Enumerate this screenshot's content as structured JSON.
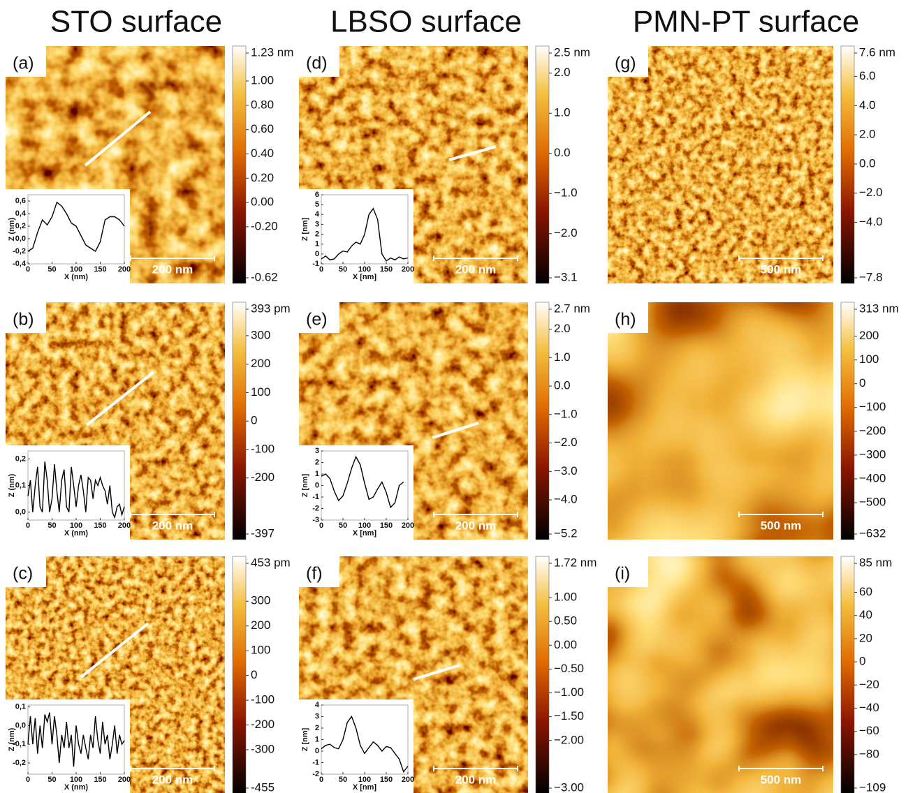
{
  "titles": [
    "STO surface",
    "LBSO surface",
    "PMN-PT surface"
  ],
  "panels": [
    {
      "label": "(a)",
      "scale_bar": "200 nm",
      "colorbar": {
        "ticks": [
          {
            "value": 1.23,
            "label": "1.23 nm"
          },
          {
            "value": 1.0,
            "label": "1.00"
          },
          {
            "value": 0.8,
            "label": "0.80"
          },
          {
            "value": 0.6,
            "label": "0.60"
          },
          {
            "value": 0.4,
            "label": "0.40"
          },
          {
            "value": 0.2,
            "label": "0.20"
          },
          {
            "value": 0,
            "label": "0.00"
          },
          {
            "value": -0.2,
            "label": "-0.20"
          },
          {
            "value": -0.62,
            "label": "-0.62"
          }
        ]
      },
      "inset": {
        "xlabel": "X (nm)",
        "ylabel": "Z (nm)",
        "xlim": [
          0,
          200
        ],
        "ylim": [
          -0.4,
          0.7
        ],
        "xticks": [
          0,
          50,
          100,
          150,
          200
        ],
        "yticks": [
          {
            "value": -0.4,
            "label": "-0,4"
          },
          {
            "value": -0.2,
            "label": "-0,2"
          },
          {
            "value": 0,
            "label": "0,0"
          },
          {
            "value": 0.2,
            "label": "0,2"
          },
          {
            "value": 0.4,
            "label": "0,4"
          },
          {
            "value": 0.6,
            "label": "0,6"
          }
        ],
        "x": [
          0,
          10,
          20,
          30,
          40,
          50,
          60,
          70,
          80,
          90,
          100,
          110,
          120,
          130,
          140,
          150,
          160,
          170,
          180,
          190,
          200
        ],
        "z": [
          -0.2,
          -0.15,
          0.1,
          0.3,
          0.22,
          0.35,
          0.58,
          0.52,
          0.4,
          0.25,
          0.2,
          0.05,
          -0.1,
          -0.15,
          -0.2,
          -0.05,
          0.3,
          0.35,
          0.35,
          0.3,
          0.2
        ]
      }
    },
    {
      "label": "(b)",
      "scale_bar": "200 nm",
      "colorbar": {
        "ticks": [
          {
            "value": 393,
            "label": "393 pm"
          },
          300,
          200,
          100,
          0,
          {
            "value": -100,
            "label": "-100"
          },
          {
            "value": -200,
            "label": "-200"
          },
          {
            "value": -397,
            "label": "-397"
          }
        ]
      },
      "inset": {
        "xlabel": "X (nm)",
        "ylabel": "Z (nm)",
        "xlim": [
          0,
          200
        ],
        "ylim": [
          -0.03,
          0.23
        ],
        "xticks": [
          0,
          50,
          100,
          150,
          200
        ],
        "yticks": [
          {
            "value": 0,
            "label": "0,0"
          },
          {
            "value": 0.1,
            "label": "0,1"
          },
          {
            "value": 0.2,
            "label": "0,2"
          }
        ],
        "x": [
          0,
          5,
          10,
          15,
          20,
          25,
          30,
          35,
          40,
          45,
          50,
          55,
          60,
          65,
          70,
          75,
          80,
          85,
          90,
          95,
          100,
          105,
          110,
          115,
          120,
          125,
          130,
          135,
          140,
          145,
          150,
          155,
          160,
          165,
          170,
          175,
          180,
          185,
          190,
          195,
          200
        ],
        "z": [
          0.06,
          0.12,
          0.0,
          0.1,
          0.17,
          0.02,
          0.0,
          0.19,
          0.12,
          0.0,
          0.05,
          0.18,
          0.08,
          0.0,
          0.12,
          0.16,
          0.02,
          0.0,
          0.17,
          0.1,
          0.02,
          0.1,
          0.14,
          0.08,
          0.0,
          0.13,
          0.12,
          0.05,
          0.12,
          0.1,
          0.13,
          0.1,
          0.08,
          0.03,
          0.1,
          0.0,
          -0.02,
          0.02,
          0.03,
          -0.01,
          0.02
        ]
      }
    },
    {
      "label": "(c)",
      "scale_bar": "200 nm",
      "colorbar": {
        "ticks": [
          {
            "value": 453,
            "label": "453 pm"
          },
          300,
          200,
          100,
          0,
          {
            "value": -100,
            "label": "-100"
          },
          {
            "value": -200,
            "label": "-200"
          },
          {
            "value": -300,
            "label": "-300"
          },
          {
            "value": -455,
            "label": "-455"
          }
        ]
      },
      "inset": {
        "xlabel": "X (nm)",
        "ylabel": "Z (nm)",
        "xlim": [
          0,
          200
        ],
        "ylim": [
          -0.26,
          0.11
        ],
        "xticks": [
          0,
          50,
          100,
          150,
          200
        ],
        "yticks": [
          {
            "value": -0.2,
            "label": "-0,2"
          },
          {
            "value": -0.1,
            "label": "-0,1"
          },
          {
            "value": 0,
            "label": "0,0"
          },
          {
            "value": 0.1,
            "label": "0,1"
          }
        ],
        "x": [
          0,
          5,
          10,
          15,
          20,
          25,
          30,
          35,
          40,
          45,
          50,
          55,
          60,
          65,
          70,
          75,
          80,
          85,
          90,
          95,
          100,
          105,
          110,
          115,
          120,
          125,
          130,
          135,
          140,
          145,
          150,
          155,
          160,
          165,
          170,
          175,
          180,
          185,
          190,
          195,
          200
        ],
        "z": [
          -0.1,
          0.05,
          -0.1,
          0.04,
          -0.15,
          0.0,
          -0.12,
          0.06,
          0.02,
          0.07,
          -0.1,
          0.05,
          -0.05,
          -0.2,
          -0.05,
          -0.12,
          0.02,
          -0.12,
          -0.05,
          -0.22,
          0.0,
          -0.1,
          -0.15,
          -0.05,
          -0.12,
          -0.18,
          -0.05,
          -0.12,
          0.05,
          -0.08,
          -0.15,
          0.02,
          -0.1,
          -0.05,
          -0.18,
          -0.1,
          0.0,
          -0.15,
          -0.05,
          -0.1,
          -0.08
        ]
      }
    },
    {
      "label": "(d)",
      "scale_bar": "200 nm",
      "colorbar": {
        "ticks": [
          {
            "value": 2.5,
            "label": "2.5 nm"
          },
          {
            "value": 2.0,
            "label": "2.0"
          },
          {
            "value": 1.0,
            "label": "1.0"
          },
          {
            "value": 0,
            "label": "0.0"
          },
          {
            "value": -1.0,
            "label": "−1.0"
          },
          {
            "value": -2.0,
            "label": "−2.0"
          },
          {
            "value": -3.1,
            "label": "−3.1"
          }
        ]
      },
      "inset": {
        "xlabel": "X [nm]",
        "ylabel": "Z [nm]",
        "xlim": [
          0,
          200
        ],
        "ylim": [
          -1,
          6
        ],
        "xticks": [
          0,
          50,
          100,
          150,
          200
        ],
        "yticks": [
          -1,
          0,
          1,
          2,
          3,
          4,
          5,
          6
        ],
        "x": [
          0,
          10,
          20,
          30,
          40,
          50,
          60,
          70,
          80,
          90,
          100,
          110,
          120,
          130,
          140,
          150,
          160,
          170,
          180,
          190,
          200
        ],
        "z": [
          -0.5,
          -0.2,
          -0.6,
          -0.5,
          0.0,
          0.3,
          0.2,
          0.8,
          1.2,
          1.0,
          2.0,
          4.0,
          4.6,
          3.5,
          0.0,
          -0.7,
          -0.4,
          -0.6,
          -0.3,
          -0.5,
          -0.4
        ]
      }
    },
    {
      "label": "(e)",
      "scale_bar": "200 nm",
      "colorbar": {
        "ticks": [
          {
            "value": 2.7,
            "label": "2.7 nm"
          },
          {
            "value": 2.0,
            "label": "2.0"
          },
          {
            "value": 1.0,
            "label": "1.0"
          },
          {
            "value": 0,
            "label": "0.0"
          },
          {
            "value": -1.0,
            "label": "−1.0"
          },
          {
            "value": -2.0,
            "label": "−2.0"
          },
          {
            "value": -3.0,
            "label": "−3.0"
          },
          {
            "value": -4.0,
            "label": "−4.0"
          },
          {
            "value": -5.2,
            "label": "−5.2"
          }
        ]
      },
      "inset": {
        "xlabel": "X [nm]",
        "ylabel": "Z [nm]",
        "xlim": [
          0,
          200
        ],
        "ylim": [
          -3,
          3
        ],
        "xticks": [
          0,
          50,
          100,
          150,
          200
        ],
        "yticks": [
          -3,
          -2,
          -1,
          0,
          1,
          2,
          3
        ],
        "x": [
          0,
          10,
          20,
          30,
          40,
          50,
          60,
          70,
          80,
          90,
          100,
          110,
          120,
          130,
          140,
          150,
          160,
          170,
          180,
          190
        ],
        "z": [
          0.8,
          1.0,
          0.6,
          -0.5,
          -1.3,
          -0.9,
          0.2,
          1.5,
          2.5,
          1.8,
          0.2,
          -1.2,
          -1.0,
          -0.3,
          0.3,
          -0.6,
          -1.9,
          -1.5,
          0.0,
          0.3
        ]
      }
    },
    {
      "label": "(f)",
      "scale_bar": "200 nm",
      "colorbar": {
        "ticks": [
          {
            "value": 1.72,
            "label": "1.72 nm"
          },
          {
            "value": 1.0,
            "label": "1.00"
          },
          {
            "value": 0.5,
            "label": "0.50"
          },
          {
            "value": 0,
            "label": "0.00"
          },
          {
            "value": -0.5,
            "label": "−0.50"
          },
          {
            "value": -1.0,
            "label": "−1.00"
          },
          {
            "value": -1.5,
            "label": "−1.50"
          },
          {
            "value": -2.0,
            "label": "−2.00"
          },
          {
            "value": -3.0,
            "label": "−3.00"
          }
        ]
      },
      "inset": {
        "xlabel": "X [nm]",
        "ylabel": "Z [nm]",
        "xlim": [
          0,
          200
        ],
        "ylim": [
          -2,
          4
        ],
        "xticks": [
          0,
          50,
          100,
          150,
          200
        ],
        "yticks": [
          -2,
          -1,
          0,
          1,
          2,
          3,
          4
        ],
        "x": [
          0,
          10,
          20,
          30,
          40,
          50,
          60,
          70,
          80,
          90,
          100,
          110,
          120,
          130,
          140,
          150,
          160,
          170,
          180,
          190,
          200
        ],
        "z": [
          0.2,
          0.5,
          0.6,
          0.3,
          0.2,
          1.0,
          2.5,
          3.0,
          2.0,
          0.5,
          -0.2,
          0.3,
          0.8,
          0.5,
          0.0,
          0.4,
          0.3,
          -0.2,
          -0.7,
          -1.8,
          -1.3
        ]
      }
    },
    {
      "label": "(g)",
      "scale_bar": "500 nm",
      "colorbar": {
        "ticks": [
          {
            "value": 7.6,
            "label": "7.6 nm"
          },
          {
            "value": 6.0,
            "label": "6.0"
          },
          {
            "value": 4.0,
            "label": "4.0"
          },
          {
            "value": 2.0,
            "label": "2.0"
          },
          {
            "value": 0,
            "label": "0.0"
          },
          {
            "value": -2.0,
            "label": "−2.0"
          },
          {
            "value": -4.0,
            "label": "−4.0"
          },
          {
            "value": -7.8,
            "label": "−7.8"
          }
        ]
      }
    },
    {
      "label": "(h)",
      "scale_bar": "500 nm",
      "colorbar": {
        "ticks": [
          {
            "value": 313,
            "label": "313 nm"
          },
          200,
          100,
          0,
          {
            "value": -100,
            "label": "−100"
          },
          {
            "value": -200,
            "label": "−200"
          },
          {
            "value": -300,
            "label": "−300"
          },
          {
            "value": -400,
            "label": "−400"
          },
          {
            "value": -500,
            "label": "−500"
          },
          {
            "value": -632,
            "label": "−632"
          }
        ]
      }
    },
    {
      "label": "(i)",
      "scale_bar": "500 nm",
      "colorbar": {
        "ticks": [
          {
            "value": 85,
            "label": "85 nm"
          },
          60,
          40,
          20,
          0,
          {
            "value": -20,
            "label": "−20"
          },
          {
            "value": -40,
            "label": "−40"
          },
          {
            "value": -60,
            "label": "−60"
          },
          {
            "value": -80,
            "label": "−80"
          },
          {
            "value": -109,
            "label": "−109"
          }
        ]
      }
    }
  ]
}
